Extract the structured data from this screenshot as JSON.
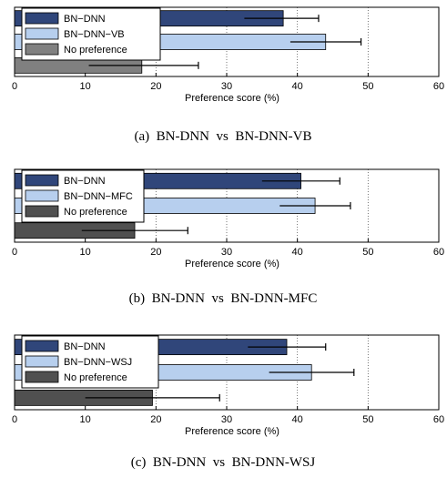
{
  "chart_data": [
    {
      "type": "bar",
      "orientation": "horizontal",
      "caption": "(a)  BN-DNN  vs  BN-DNN-VB",
      "xlabel": "Preference score (%)",
      "xlim": [
        0,
        60
      ],
      "xticks": [
        0,
        10,
        20,
        30,
        40,
        50,
        60
      ],
      "grid": "vertical dotted",
      "legend_position": "top-left",
      "series": [
        {
          "name": "BN−DNN",
          "value": 38,
          "error": [
            32.5,
            43
          ],
          "color": "#30467a"
        },
        {
          "name": "BN−DNN−VB",
          "value": 44,
          "error": [
            39,
            49
          ],
          "color": "#b7cfee"
        },
        {
          "name": "No preference",
          "value": 18,
          "error": [
            10.5,
            26
          ],
          "color": "#808080"
        }
      ]
    },
    {
      "type": "bar",
      "orientation": "horizontal",
      "caption": "(b)  BN-DNN  vs  BN-DNN-MFC",
      "xlabel": "Preference score (%)",
      "xlim": [
        0,
        60
      ],
      "xticks": [
        0,
        10,
        20,
        30,
        40,
        50,
        60
      ],
      "grid": "vertical dotted",
      "legend_position": "top-left",
      "series": [
        {
          "name": "BN−DNN",
          "value": 40.5,
          "error": [
            35,
            46
          ],
          "color": "#30467a"
        },
        {
          "name": "BN−DNN−MFC",
          "value": 42.5,
          "error": [
            37.5,
            47.5
          ],
          "color": "#b7cfee"
        },
        {
          "name": "No preference",
          "value": 17,
          "error": [
            9.5,
            24.5
          ],
          "color": "#505050"
        }
      ]
    },
    {
      "type": "bar",
      "orientation": "horizontal",
      "caption": "(c)  BN-DNN  vs  BN-DNN-WSJ",
      "xlabel": "Preference score (%)",
      "xlim": [
        0,
        60
      ],
      "xticks": [
        0,
        10,
        20,
        30,
        40,
        50,
        60
      ],
      "grid": "vertical dotted",
      "legend_position": "top-left",
      "series": [
        {
          "name": "BN−DNN",
          "value": 38.5,
          "error": [
            33,
            44
          ],
          "color": "#30467a"
        },
        {
          "name": "BN−DNN−WSJ",
          "value": 42,
          "error": [
            36,
            48
          ],
          "color": "#b7cfee"
        },
        {
          "name": "No preference",
          "value": 19.5,
          "error": [
            10,
            29
          ],
          "color": "#505050"
        }
      ]
    }
  ]
}
